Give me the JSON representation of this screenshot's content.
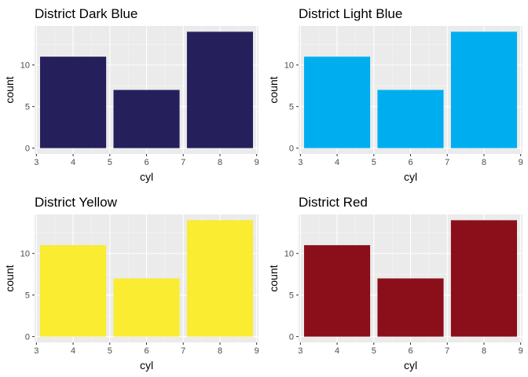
{
  "chart_data": [
    {
      "type": "bar",
      "title": "District Dark Blue",
      "xlabel": "cyl",
      "ylabel": "count",
      "x": [
        4,
        6,
        8
      ],
      "values": [
        11,
        7,
        14
      ],
      "bar_width": 1.8,
      "xlim": [
        2.95,
        9.05
      ],
      "ylim": [
        -0.7,
        14.7
      ],
      "xticks": [
        3,
        4,
        5,
        6,
        7,
        8,
        9
      ],
      "yticks": [
        0,
        5,
        10
      ],
      "color": "#25205c",
      "grid": true
    },
    {
      "type": "bar",
      "title": "District Light Blue",
      "xlabel": "cyl",
      "ylabel": "count",
      "x": [
        4,
        6,
        8
      ],
      "values": [
        11,
        7,
        14
      ],
      "bar_width": 1.8,
      "xlim": [
        2.95,
        9.05
      ],
      "ylim": [
        -0.7,
        14.7
      ],
      "xticks": [
        3,
        4,
        5,
        6,
        7,
        8,
        9
      ],
      "yticks": [
        0,
        5,
        10
      ],
      "color": "#00aeef",
      "grid": true
    },
    {
      "type": "bar",
      "title": "District Yellow",
      "xlabel": "cyl",
      "ylabel": "count",
      "x": [
        4,
        6,
        8
      ],
      "values": [
        11,
        7,
        14
      ],
      "bar_width": 1.8,
      "xlim": [
        2.95,
        9.05
      ],
      "ylim": [
        -0.7,
        14.7
      ],
      "xticks": [
        3,
        4,
        5,
        6,
        7,
        8,
        9
      ],
      "yticks": [
        0,
        5,
        10
      ],
      "color": "#f9ec31",
      "grid": true
    },
    {
      "type": "bar",
      "title": "District Red",
      "xlabel": "cyl",
      "ylabel": "count",
      "x": [
        4,
        6,
        8
      ],
      "values": [
        11,
        7,
        14
      ],
      "bar_width": 1.8,
      "xlim": [
        2.95,
        9.05
      ],
      "ylim": [
        -0.7,
        14.7
      ],
      "xticks": [
        3,
        4,
        5,
        6,
        7,
        8,
        9
      ],
      "yticks": [
        0,
        5,
        10
      ],
      "color": "#8a0f1a",
      "grid": true
    }
  ],
  "theme": {
    "panel_background": "#ebebeb",
    "grid_major": "#ffffff",
    "grid_minor": "#f5f5f5",
    "tick_color": "#333333"
  }
}
